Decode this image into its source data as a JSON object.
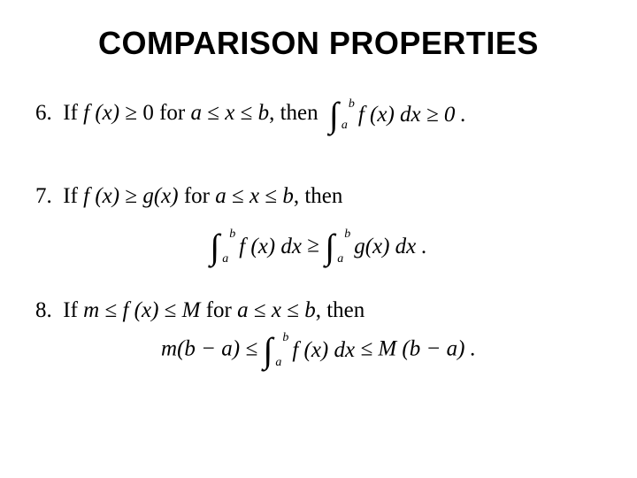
{
  "title": "COMPARISON PROPERTIES",
  "items": {
    "p6": {
      "num": "6.",
      "pre": "If ",
      "fx": "f (x)",
      "geq": " ≥ 0 for ",
      "a": "a",
      "leq1": " ≤ ",
      "x": "x",
      "leq2": " ≤ ",
      "b": "b",
      "then": ", then",
      "int_upper": "b",
      "int_lower": "a",
      "int_body": "f (x) dx ≥ 0 ."
    },
    "p7": {
      "num": "7.",
      "pre": "If ",
      "fx": "f (x)",
      "geq": " ≥ ",
      "gx": "g(x)",
      "for": " for ",
      "a": "a",
      "leq1": " ≤ ",
      "x": "x",
      "leq2": " ≤ ",
      "b": "b",
      "then": ", then",
      "formula": {
        "int1_upper": "b",
        "int1_lower": "a",
        "int1_body": "f (x) dx",
        "geq": " ≥ ",
        "int2_upper": "b",
        "int2_lower": "a",
        "int2_body": "g(x) dx ."
      }
    },
    "p8": {
      "num": "8.",
      "pre": "If  ",
      "m": "m",
      "leq1": " ≤ ",
      "fx": "f (x)",
      "leq2": " ≤ ",
      "M": "M",
      "for": " for ",
      "a": "a",
      "leq3": " ≤ ",
      "x": "x",
      "leq4": " ≤ ",
      "b": "b",
      "then": ", then",
      "formula": {
        "left": "m(b − a) ≤ ",
        "int_upper": "b",
        "int_lower": "a",
        "int_body": "f (x) dx",
        "right": " ≤ M (b − a) ."
      }
    }
  },
  "style": {
    "bg": "#ffffff",
    "fg": "#000000",
    "title_fontsize": 36,
    "body_fontsize": 25,
    "int_fontsize": 40,
    "limit_fontsize": 14
  }
}
